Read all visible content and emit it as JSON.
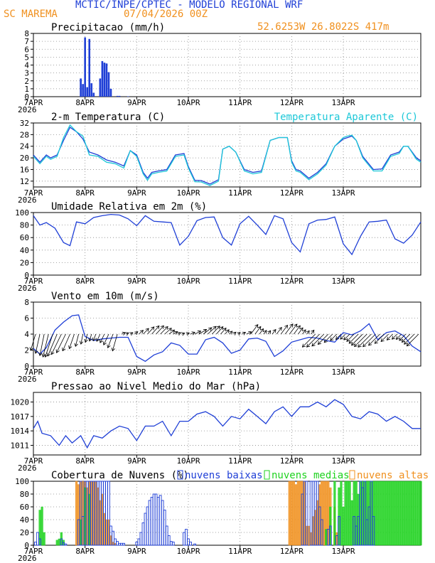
{
  "header": {
    "title": "MCTIC/INPE/CPTEC - MODELO REGIONAL WRF",
    "location": "SC MAREMA",
    "run": "07/04/2026 00Z",
    "coords": "52.6253W 26.8022S 417m",
    "title_color": "#1f3fd6",
    "info_color": "#f0901e"
  },
  "colors": {
    "blue": "#1f3fd6",
    "cyan": "#1ec8d8",
    "green": "#1ed21e",
    "orange": "#f0901e"
  },
  "time_axis": {
    "day_labels": [
      "7APR",
      "8APR",
      "9APR",
      "10APR",
      "11APR",
      "12APR",
      "13APR"
    ],
    "year_label": "2026"
  },
  "chart_data": [
    {
      "type": "bar",
      "title": "Precipitacao (mm/h)",
      "ylim": [
        0,
        8
      ],
      "yticks": [
        0,
        1,
        2,
        3,
        4,
        5,
        6,
        7,
        8
      ],
      "x_hours": [
        22,
        23,
        24,
        25,
        26,
        27,
        28,
        31,
        32,
        33,
        34,
        35,
        36,
        39,
        40,
        44
      ],
      "values": [
        2.3,
        1.6,
        7.5,
        1.2,
        7.3,
        1.7,
        0.5,
        2.3,
        4.5,
        4.3,
        4.2,
        3.1,
        1.0,
        0.1,
        0.1,
        0.05
      ]
    },
    {
      "type": "line",
      "title": "2-m Temperatura (C)",
      "ylim": [
        10,
        32
      ],
      "yticks": [
        12,
        16,
        20,
        24,
        28,
        32
      ],
      "series": [
        {
          "name": "2-m Temperatura (C)",
          "x_hours": [
            0,
            3,
            6,
            8,
            11,
            14,
            17,
            20,
            23,
            26,
            30,
            34,
            38,
            42,
            45,
            48,
            51,
            53,
            55,
            58,
            62,
            66,
            70,
            72,
            75,
            78,
            82,
            86,
            88,
            91,
            94,
            98,
            102,
            106,
            110,
            114,
            118,
            120,
            122,
            124,
            128,
            132,
            136,
            140,
            144,
            146,
            148,
            150,
            153,
            158,
            162,
            166,
            170,
            172,
            174,
            178,
            180
          ],
          "values": [
            21,
            18.5,
            21,
            20,
            21,
            26,
            30.5,
            29,
            26.5,
            22,
            21,
            19.3,
            18.5,
            17.2,
            22.5,
            21,
            15,
            13,
            15,
            15.5,
            16,
            21,
            21.5,
            17,
            12.3,
            12.2,
            11,
            12.5,
            23,
            24,
            22,
            16,
            15,
            15.5,
            26,
            27,
            27,
            19,
            16,
            15.5,
            13,
            15,
            18,
            24,
            26.5,
            27,
            27.5,
            26,
            20.5,
            16,
            16.2,
            21,
            22,
            24,
            24,
            20,
            19
          ]
        },
        {
          "name": "Temperatura Aparente (C)",
          "x_hours": [
            0,
            3,
            6,
            8,
            11,
            14,
            17,
            20,
            23,
            26,
            30,
            34,
            38,
            42,
            45,
            48,
            51,
            53,
            55,
            58,
            62,
            66,
            70,
            72,
            75,
            78,
            82,
            86,
            88,
            91,
            94,
            98,
            102,
            106,
            110,
            114,
            118,
            120,
            122,
            124,
            128,
            132,
            136,
            140,
            144,
            146,
            148,
            150,
            153,
            158,
            162,
            166,
            170,
            172,
            174,
            178,
            180
          ],
          "values": [
            20.5,
            18,
            20.5,
            19.5,
            20.5,
            27,
            31.3,
            29,
            27.5,
            21,
            20.5,
            18.5,
            18,
            16.5,
            22.5,
            20.5,
            14.5,
            12.3,
            14.5,
            15,
            15.5,
            20.5,
            21,
            16.5,
            11.8,
            11.7,
            10.5,
            12,
            23,
            24,
            22,
            15.5,
            14.5,
            15,
            26,
            27,
            27,
            18.5,
            15.5,
            15,
            12.5,
            14.5,
            17.5,
            24,
            27,
            27.5,
            27.8,
            26,
            20,
            15.5,
            15.5,
            20.5,
            21.5,
            24,
            24,
            19.5,
            18.5
          ]
        }
      ],
      "legend": "Temperatura Aparente (C)"
    },
    {
      "type": "line",
      "title": "Umidade Relativa em 2m (%)",
      "ylim": [
        0,
        100
      ],
      "yticks": [
        0,
        20,
        40,
        60,
        80,
        100
      ],
      "x_hours": [
        0,
        3,
        6,
        10,
        14,
        17,
        20,
        24,
        28,
        32,
        36,
        40,
        44,
        48,
        52,
        56,
        60,
        64,
        68,
        72,
        76,
        80,
        84,
        88,
        92,
        96,
        100,
        104,
        108,
        112,
        116,
        120,
        124,
        128,
        132,
        136,
        140,
        144,
        148,
        152,
        156,
        160,
        164,
        168,
        172,
        176,
        180
      ],
      "values": [
        95,
        80,
        84,
        75,
        52,
        47,
        85,
        82,
        92,
        95,
        97,
        96,
        90,
        79,
        95,
        86,
        85,
        84,
        48,
        62,
        87,
        92,
        93,
        60,
        48,
        82,
        94,
        80,
        65,
        95,
        90,
        52,
        37,
        82,
        88,
        89,
        93,
        50,
        33,
        62,
        85,
        86,
        88,
        58,
        51,
        64,
        85
      ]
    },
    {
      "type": "line",
      "title": "Vento em 10m (m/s)",
      "ylim": [
        0,
        8
      ],
      "yticks": [
        0,
        2,
        4,
        6,
        8
      ],
      "x_hours": [
        0,
        3,
        6,
        10,
        14,
        18,
        21,
        24,
        28,
        32,
        36,
        40,
        44,
        48,
        52,
        56,
        60,
        64,
        68,
        72,
        76,
        80,
        84,
        88,
        92,
        96,
        100,
        104,
        108,
        112,
        116,
        120,
        124,
        128,
        132,
        136,
        140,
        144,
        148,
        152,
        156,
        160,
        164,
        168,
        172,
        176,
        180
      ],
      "values": [
        2.2,
        1.5,
        2.3,
        4.5,
        5.5,
        6.3,
        6.4,
        3.7,
        3.2,
        3.4,
        3.5,
        3.6,
        3.6,
        1.2,
        0.6,
        1.4,
        1.8,
        2.9,
        2.6,
        1.5,
        1.5,
        3.3,
        3.6,
        2.9,
        1.6,
        2.0,
        3.4,
        3.5,
        3.1,
        1.2,
        1.9,
        3.0,
        3.3,
        3.6,
        3.5,
        3.2,
        3.0,
        4.2,
        3.9,
        4.4,
        5.3,
        3.3,
        4.2,
        4.4,
        3.8,
        2.5,
        1.8
      ]
    },
    {
      "type": "line",
      "title": "Pressao ao Nivel Medio do Mar (hPa)",
      "ylim": [
        1009,
        1022
      ],
      "yticks": [
        1011,
        1014,
        1017,
        1020
      ],
      "x_hours": [
        0,
        2,
        4,
        8,
        12,
        15,
        18,
        22,
        25,
        28,
        32,
        36,
        40,
        44,
        48,
        52,
        56,
        60,
        64,
        68,
        72,
        76,
        80,
        84,
        88,
        92,
        96,
        100,
        104,
        108,
        112,
        116,
        120,
        124,
        128,
        132,
        136,
        140,
        144,
        148,
        152,
        156,
        160,
        164,
        168,
        172,
        176,
        180
      ],
      "values": [
        1014.5,
        1016,
        1013.5,
        1013,
        1011,
        1013,
        1011.5,
        1013,
        1010.5,
        1013,
        1012.5,
        1014,
        1015,
        1014.5,
        1012,
        1015,
        1015,
        1016,
        1013,
        1016,
        1016,
        1017.5,
        1018,
        1017,
        1015,
        1017,
        1016.5,
        1018.5,
        1017,
        1015.5,
        1018,
        1019,
        1017,
        1019,
        1019,
        1020,
        1019,
        1020.5,
        1019.5,
        1017,
        1016.5,
        1018,
        1017.5,
        1016,
        1017,
        1016,
        1014.5,
        1014.5
      ]
    },
    {
      "type": "bar",
      "title": "Cobertura de Nuvens (%)",
      "ylim": [
        0,
        100
      ],
      "yticks": [
        0,
        20,
        40,
        60,
        80,
        100
      ],
      "legend": [
        "nuvens baixas",
        "nuvens medias",
        "nuvens altas"
      ],
      "series": [
        {
          "name": "nuvens baixas",
          "x_hours": [
            1,
            2,
            3,
            13,
            14,
            15,
            21,
            22,
            23,
            24,
            25,
            26,
            27,
            28,
            29,
            30,
            31,
            32,
            33,
            34,
            35,
            36,
            37,
            38,
            39,
            40,
            41,
            42,
            48,
            49,
            50,
            51,
            52,
            53,
            54,
            55,
            56,
            57,
            58,
            59,
            60,
            61,
            62,
            63,
            64,
            65,
            70,
            71,
            72,
            73,
            75,
            125,
            126,
            127,
            129,
            130,
            131,
            132,
            133,
            134,
            137,
            138,
            141,
            142,
            149,
            150,
            151,
            152,
            153,
            154,
            155,
            156,
            157,
            158
          ],
          "values": [
            5,
            20,
            10,
            10,
            4,
            2,
            40,
            100,
            45,
            100,
            100,
            100,
            100,
            100,
            100,
            100,
            100,
            100,
            100,
            100,
            100,
            30,
            22,
            10,
            6,
            3,
            3,
            3,
            5,
            10,
            20,
            35,
            50,
            60,
            70,
            75,
            80,
            80,
            75,
            78,
            70,
            55,
            30,
            15,
            6,
            5,
            20,
            25,
            10,
            5,
            2,
            80,
            100,
            100,
            100,
            100,
            100,
            100,
            60,
            40,
            25,
            30,
            15,
            45,
            45,
            30,
            45,
            100,
            90,
            100,
            40,
            60,
            100,
            45
          ]
        },
        {
          "name": "nuvens medias",
          "x_hours": [
            3,
            4,
            5,
            11,
            12,
            13,
            14,
            22,
            24,
            26,
            136,
            138,
            140,
            142,
            143,
            144,
            145,
            146,
            147,
            148,
            149,
            150,
            151,
            152,
            153,
            154,
            155,
            156,
            157,
            158,
            159,
            160,
            161,
            162,
            163,
            164,
            165,
            166,
            167,
            168,
            169,
            170,
            171,
            172,
            173,
            174,
            175,
            176,
            177,
            178,
            179,
            180
          ],
          "values": [
            55,
            60,
            20,
            8,
            10,
            20,
            8,
            40,
            90,
            80,
            25,
            60,
            100,
            90,
            100,
            60,
            100,
            100,
            100,
            70,
            100,
            100,
            80,
            100,
            100,
            100,
            100,
            100,
            100,
            100,
            100,
            100,
            100,
            100,
            100,
            100,
            100,
            100,
            100,
            100,
            100,
            100,
            100,
            100,
            100,
            100,
            100,
            100,
            100,
            100,
            100,
            100
          ]
        },
        {
          "name": "nuvens altas",
          "x_hours": [
            20,
            21,
            22,
            23,
            24,
            25,
            26,
            27,
            28,
            29,
            30,
            31,
            32,
            33,
            34,
            35,
            36,
            37,
            38,
            119,
            120,
            121,
            122,
            123,
            124,
            125,
            126,
            127,
            128,
            129,
            130,
            131,
            132,
            133,
            134,
            135,
            136,
            137,
            138,
            140,
            141
          ],
          "values": [
            100,
            95,
            100,
            100,
            100,
            90,
            100,
            100,
            100,
            100,
            90,
            70,
            80,
            50,
            40,
            40,
            15,
            5,
            3,
            100,
            100,
            100,
            95,
            100,
            100,
            100,
            100,
            30,
            30,
            20,
            45,
            55,
            70,
            95,
            100,
            100,
            100,
            100,
            90,
            60,
            20
          ]
        }
      ]
    }
  ]
}
